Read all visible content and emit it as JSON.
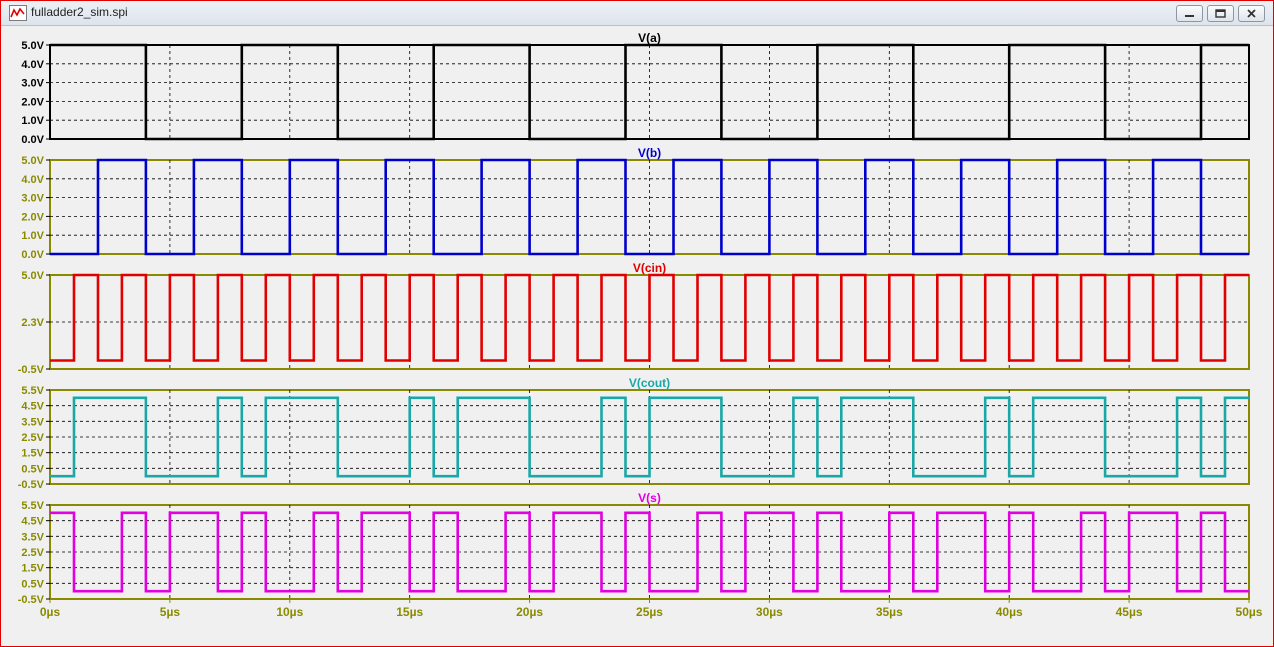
{
  "window": {
    "title": "fulladder2_sim.spi",
    "icon": "waveform-icon"
  },
  "colors": {
    "axis_frame": "#8a8a00",
    "grid": "#000000",
    "tick_label": "#8a8a00",
    "a": "#000000",
    "b": "#0000cc",
    "cin": "#e00000",
    "cout": "#1aa7a7",
    "s": "#e000e0"
  },
  "chart_data": {
    "type": "line",
    "xlabel": "",
    "x_unit": "µs",
    "xlim": [
      0,
      50
    ],
    "xticks": [
      "0µs",
      "5µs",
      "10µs",
      "15µs",
      "20µs",
      "25µs",
      "30µs",
      "35µs",
      "40µs",
      "45µs",
      "50µs"
    ],
    "grid": true,
    "panes": [
      {
        "name": "V(a)",
        "color_key": "a",
        "ylim": [
          0,
          5
        ],
        "yticks": [
          "5.0V",
          "4.0V",
          "3.0V",
          "2.0V",
          "1.0V",
          "0.0V"
        ],
        "period_us": 8,
        "high_v": 5,
        "low_v": 0,
        "start_high": true
      },
      {
        "name": "V(b)",
        "color_key": "b",
        "ylim": [
          0,
          5
        ],
        "yticks": [
          "5.0V",
          "4.0V",
          "3.0V",
          "2.0V",
          "1.0V",
          "0.0V"
        ],
        "period_us": 4,
        "high_v": 5,
        "low_v": 0,
        "start_high": false
      },
      {
        "name": "V(cin)",
        "color_key": "cin",
        "ylim": [
          -0.5,
          5.0
        ],
        "yticks": [
          "5.0V",
          "2.3V",
          "-0.5V"
        ],
        "period_us": 2,
        "high_v": 5,
        "low_v": 0,
        "start_high": false
      },
      {
        "name": "V(cout)",
        "color_key": "cout",
        "ylim": [
          -0.5,
          5.5
        ],
        "yticks": [
          "5.5V",
          "4.5V",
          "3.5V",
          "2.5V",
          "1.5V",
          "0.5V",
          "-0.5V"
        ],
        "derived": "carry",
        "high_v": 5,
        "low_v": 0
      },
      {
        "name": "V(s)",
        "color_key": "s",
        "ylim": [
          -0.5,
          5.5
        ],
        "yticks": [
          "5.5V",
          "4.5V",
          "3.5V",
          "2.5V",
          "1.5V",
          "0.5V",
          "-0.5V"
        ],
        "derived": "sum",
        "high_v": 5,
        "low_v": 0
      }
    ]
  }
}
